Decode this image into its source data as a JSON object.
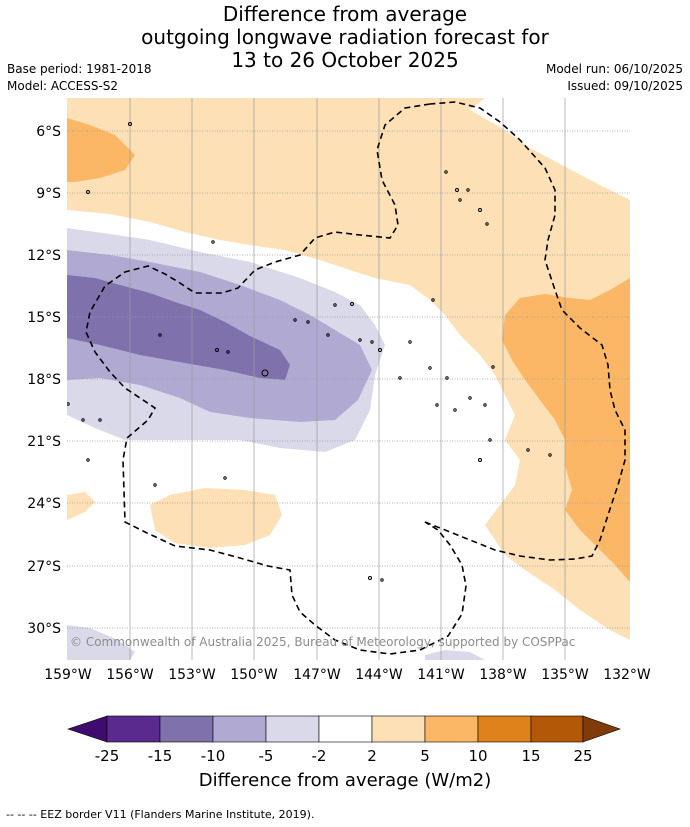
{
  "title": {
    "line1": "Difference from average",
    "line2": "outgoing longwave radiation forecast for",
    "line3": "13 to 26 October 2025"
  },
  "info": {
    "base_period": "Base period: 1981-2018",
    "model": "Model: ACCESS-S2",
    "model_run": "Model run: 06/10/2025",
    "issued": "Issued: 09/10/2025"
  },
  "map": {
    "lat_labels": [
      "6°S",
      "9°S",
      "12°S",
      "15°S",
      "18°S",
      "21°S",
      "24°S",
      "27°S",
      "30°S"
    ],
    "lon_labels": [
      "159°W",
      "156°W",
      "153°W",
      "150°W",
      "147°W",
      "144°W",
      "141°W",
      "138°W",
      "135°W",
      "132°W"
    ],
    "copyright": "© Commonwealth of Australia 2025, Bureau of Meteorology, supported by COSPPac"
  },
  "colorbar": {
    "ticks": [
      "-25",
      "-15",
      "-10",
      "-5",
      "-2",
      "2",
      "5",
      "10",
      "15",
      "25"
    ],
    "colors": [
      "#3f0b6e",
      "#5b2a8e",
      "#7f72ac",
      "#b0aad2",
      "#d9d9ea",
      "#ffffff",
      "#fde0b5",
      "#fbb765",
      "#e0821c",
      "#b35806",
      "#7f3b08"
    ],
    "title": "Difference from average (W/m2)"
  },
  "footer": {
    "text": "--  --  -- EEZ border V11 (Flanders Marine Institute, 2019)."
  },
  "colors": {
    "white": "#ffffff",
    "light_orange": "#fde0b5",
    "orange": "#fbb765",
    "light_purple": "#d9d9ea",
    "mid_purple": "#b0aad2",
    "dark_purple": "#7f72ac"
  }
}
